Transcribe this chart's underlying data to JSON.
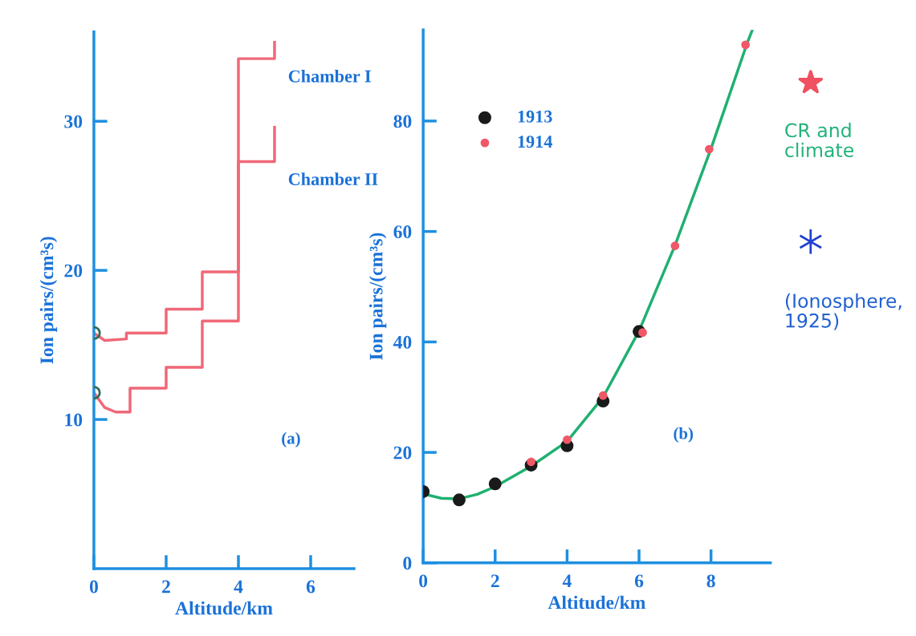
{
  "chart_data": [
    {
      "type": "line",
      "xlabel": "Altitude/km",
      "ylabel": "Ion pairs/(cm³s)",
      "xlim": [
        0,
        7.2
      ],
      "ylim": [
        0,
        36
      ],
      "xticks": [
        0,
        2,
        4,
        6
      ],
      "yticks": [
        10,
        20,
        30
      ],
      "legend": false,
      "grid": false,
      "annotations": [
        "(a)"
      ],
      "series": [
        {
          "name": "Chamber I",
          "color": "#f06878",
          "marker": "none",
          "x": [
            0,
            0.3,
            0.9,
            0.9,
            2,
            2,
            3,
            3,
            4,
            4,
            5,
            5
          ],
          "values": [
            15.8,
            15.3,
            15.4,
            15.8,
            15.8,
            17.4,
            17.4,
            19.9,
            19.9,
            34.2,
            34.2,
            35.3
          ]
        },
        {
          "name": "Chamber II",
          "color": "#f06878",
          "marker": "none",
          "x": [
            0,
            0.3,
            0.6,
            1,
            1,
            2,
            2,
            3,
            3,
            4,
            4,
            5,
            5
          ],
          "values": [
            11.8,
            10.8,
            10.5,
            10.5,
            12.1,
            12.1,
            13.5,
            13.5,
            16.6,
            16.6,
            27.3,
            27.3,
            29.6
          ]
        },
        {
          "type": "scatter",
          "color": "#2e6b5a",
          "marker": "circle",
          "x": [
            0,
            0
          ],
          "values": [
            15.8,
            11.8
          ]
        }
      ]
    },
    {
      "type": "line",
      "xlabel": "Altitude/km",
      "ylabel": "Ion pairs/(cm³s)",
      "xlim": [
        0,
        9.65
      ],
      "ylim": [
        0,
        96.5
      ],
      "xticks": [
        0,
        2,
        4,
        6,
        8
      ],
      "yticks": [
        0,
        20,
        40,
        60,
        80
      ],
      "legend": "top left",
      "grid": false,
      "annotations": [
        "(b)",
        "CR and climate",
        "(Ionosphere, 1925)"
      ],
      "series": [
        {
          "color": "#1fb070",
          "marker": "none",
          "x": [
            0,
            0.5,
            1,
            1.5,
            2,
            3,
            4,
            5,
            6,
            7,
            8,
            9,
            9.15
          ],
          "values": [
            12.5,
            11.7,
            11.6,
            12.4,
            13.8,
            17.5,
            22,
            30,
            42,
            57.5,
            75,
            94,
            96.5
          ]
        },
        {
          "name": "1913",
          "type": "scatter",
          "color": "#1a1a1a",
          "marker": "circle",
          "x": [
            0,
            1,
            2,
            3,
            4,
            5,
            6
          ],
          "values": [
            12.9,
            11.4,
            14.3,
            17.7,
            21.2,
            29.3,
            41.9
          ]
        },
        {
          "name": "1914",
          "type": "scatter",
          "color": "#f05868",
          "marker": "circle",
          "x": [
            3,
            4,
            5,
            6.1,
            7,
            7.95,
            8.96
          ],
          "values": [
            18.3,
            22.3,
            30.3,
            41.7,
            57.4,
            74.9,
            93.8
          ]
        }
      ]
    }
  ]
}
